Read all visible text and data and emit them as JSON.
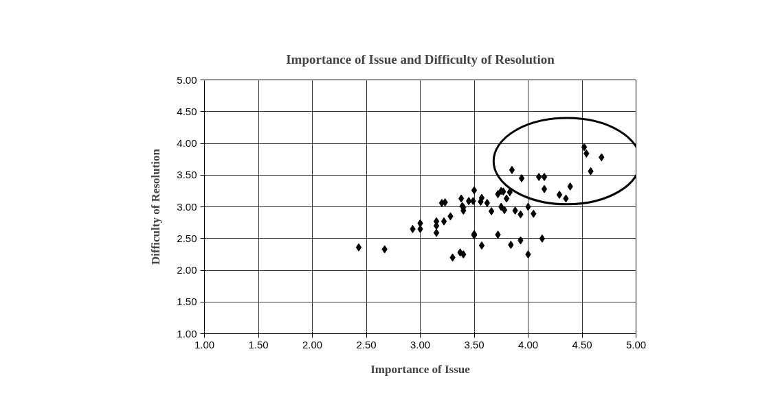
{
  "chart_data": {
    "type": "scatter",
    "title": "Importance of Issue and Difficulty of Resolution",
    "xlabel": "Importance of Issue",
    "ylabel": "Difficulty of Resolution",
    "xlim": [
      1,
      5
    ],
    "ylim": [
      1,
      5
    ],
    "xticks": [
      {
        "value": 1,
        "label": "1.00"
      },
      {
        "value": 1.5,
        "label": "1.50"
      },
      {
        "value": 2,
        "label": "2.00"
      },
      {
        "value": 2.5,
        "label": "2.50"
      },
      {
        "value": 3,
        "label": "3.00"
      },
      {
        "value": 3.5,
        "label": "3.50"
      },
      {
        "value": 4,
        "label": "4.00"
      },
      {
        "value": 4.5,
        "label": "4.50"
      },
      {
        "value": 5,
        "label": "5.00"
      }
    ],
    "yticks": [
      {
        "value": 1,
        "label": "1.00"
      },
      {
        "value": 1.5,
        "label": "1.50"
      },
      {
        "value": 2,
        "label": "2.00"
      },
      {
        "value": 2.5,
        "label": "2.50"
      },
      {
        "value": 3,
        "label": "3.00"
      },
      {
        "value": 3.5,
        "label": "3.50"
      },
      {
        "value": 4,
        "label": "4.00"
      },
      {
        "value": 4.5,
        "label": "4.50"
      },
      {
        "value": 5,
        "label": "5.00"
      }
    ],
    "grid": true,
    "marker": "diamond",
    "series": [
      {
        "color": "#000000",
        "x": [
          2.43,
          2.67,
          2.93,
          3.0,
          3.0,
          3.15,
          3.15,
          3.15,
          3.2,
          3.23,
          3.22,
          3.28,
          3.3,
          3.37,
          3.38,
          3.39,
          3.4,
          3.4,
          3.4,
          3.45,
          3.49,
          3.5,
          3.5,
          3.5,
          3.57,
          3.56,
          3.57,
          3.62,
          3.66,
          3.72,
          3.72,
          3.75,
          3.75,
          3.77,
          3.78,
          3.8,
          3.83,
          3.84,
          3.85,
          3.88,
          3.93,
          3.93,
          3.94,
          4.0,
          4.0,
          4.05,
          4.1,
          4.13,
          4.15,
          4.15,
          4.29,
          4.35,
          4.39,
          4.52,
          4.54,
          4.58,
          4.68
        ],
        "values": [
          2.36,
          2.33,
          2.65,
          2.74,
          2.65,
          2.77,
          2.7,
          2.59,
          3.06,
          3.07,
          2.77,
          2.85,
          2.2,
          2.28,
          3.13,
          3.01,
          2.99,
          2.94,
          2.25,
          3.09,
          3.09,
          3.26,
          2.57,
          2.55,
          3.14,
          3.08,
          2.39,
          3.06,
          2.93,
          2.56,
          3.2,
          3.25,
          3.0,
          3.24,
          2.95,
          3.13,
          3.23,
          2.4,
          3.58,
          2.94,
          2.88,
          2.47,
          3.45,
          3.0,
          2.25,
          2.89,
          3.47,
          2.5,
          3.47,
          3.28,
          3.19,
          3.13,
          3.32,
          3.94,
          3.84,
          3.56,
          3.78
        ]
      }
    ]
  }
}
